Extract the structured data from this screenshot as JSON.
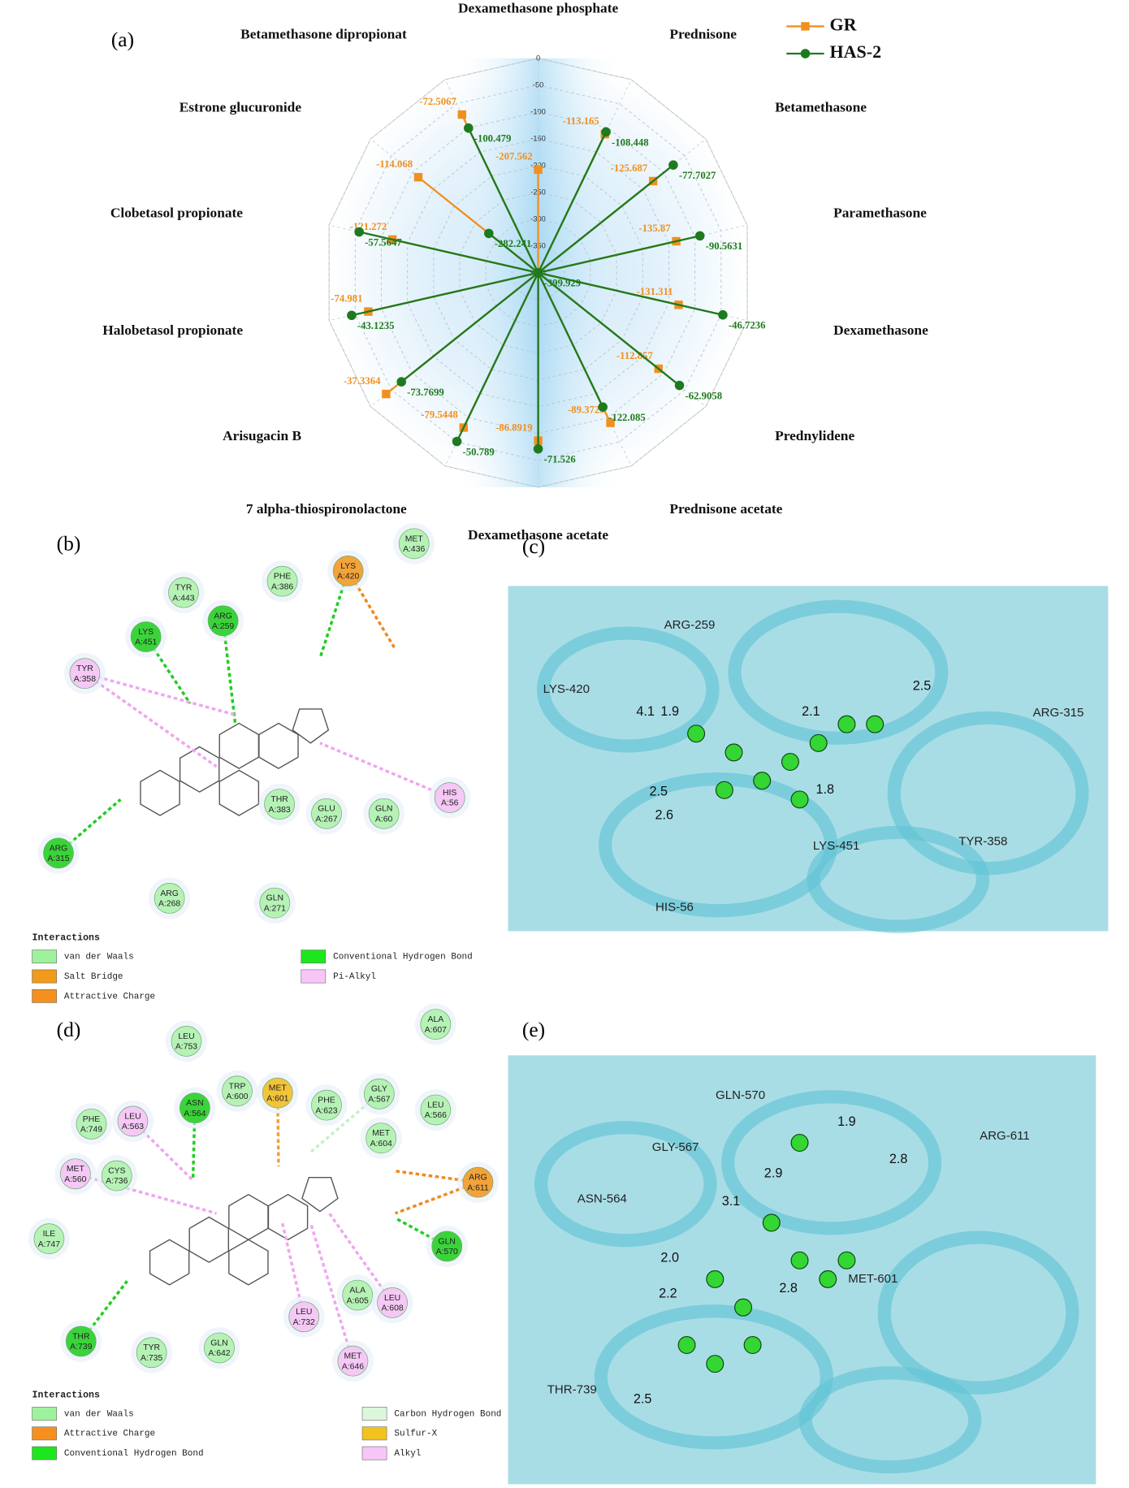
{
  "chart_data": {
    "type": "radar",
    "panel_label": "(a)",
    "categories": [
      "Dexamethasone phosphate",
      "Prednisone",
      "Betamethasone",
      "Paramethasone",
      "Dexamethasone",
      "Prednylidene",
      "Prednisone acetate",
      "Dexamethasone acetate",
      "7 alpha-thiospironolactone",
      "Arisugacin B",
      "Halobetasol propionate",
      "Clobetasol propionate",
      "Estrone glucuronide",
      "Betamethasone dipropionat"
    ],
    "series": [
      {
        "name": "GR",
        "color": "#f0901e",
        "marker": "square",
        "values": [
          -207.562,
          -113.165,
          -125.687,
          -135.87,
          -131.311,
          -112.857,
          -89.3729,
          -86.8919,
          -79.5448,
          -37.3364,
          -74.981,
          -121.272,
          -114.068,
          -72.5067
        ]
      },
      {
        "name": "HAS-2",
        "color": "#1e7a1e",
        "marker": "circle",
        "values": [
          -399.929,
          -108.448,
          -77.7027,
          -90.5631,
          -46.7236,
          -62.9058,
          -122.085,
          -71.526,
          -50.789,
          -73.7699,
          -43.1235,
          -57.5647,
          -282.241,
          -100.479
        ]
      }
    ],
    "ylim": [
      -400,
      0
    ],
    "yticks": [
      0,
      -50,
      -100,
      -150,
      -200,
      -250,
      -300,
      -350,
      -400
    ],
    "grid": true,
    "legend": "upper right"
  },
  "panel_b": {
    "label": "(b)",
    "residues": [
      {
        "name": "MET",
        "id": "A:436",
        "color": "#b6f2b6"
      },
      {
        "name": "TYR",
        "id": "A:443",
        "color": "#b6f2b6"
      },
      {
        "name": "PHE",
        "id": "A:386",
        "color": "#b6f2b6"
      },
      {
        "name": "LYS",
        "id": "A:420",
        "color": "#f2a33a"
      },
      {
        "name": "ARG",
        "id": "A:259",
        "color": "#3ad43a"
      },
      {
        "name": "LYS",
        "id": "A:451",
        "color": "#3ad43a"
      },
      {
        "name": "TYR",
        "id": "A:358",
        "color": "#f5c8f5"
      },
      {
        "name": "HIS",
        "id": "A:56",
        "color": "#f5c8f5"
      },
      {
        "name": "THR",
        "id": "A:383",
        "color": "#b6f2b6"
      },
      {
        "name": "GLU",
        "id": "A:267",
        "color": "#b6f2b6"
      },
      {
        "name": "GLN",
        "id": "A:60",
        "color": "#b6f2b6"
      },
      {
        "name": "ARG",
        "id": "A:315",
        "color": "#3ad43a"
      },
      {
        "name": "ARG",
        "id": "A:268",
        "color": "#b6f2b6"
      },
      {
        "name": "GLN",
        "id": "A:271",
        "color": "#b6f2b6"
      }
    ],
    "legend_title": "Interactions",
    "legend": [
      {
        "label": "van der Waals",
        "color": "#9ef29e"
      },
      {
        "label": "Salt Bridge",
        "color": "#f29b1b"
      },
      {
        "label": "Attractive Charge",
        "color": "#f5901e"
      },
      {
        "label": "Conventional Hydrogen Bond",
        "color": "#1ee61e"
      },
      {
        "label": "Pi-Alkyl",
        "color": "#f7c6f7"
      }
    ]
  },
  "panel_c": {
    "label": "(c)",
    "residues": [
      "ARG-259",
      "LYS-420",
      "ARG-315",
      "LYS-451",
      "TYR-358",
      "HIS-56"
    ],
    "distances": [
      "2.1",
      "2.5",
      "4.1",
      "1.9",
      "2.5",
      "2.6",
      "1.8"
    ]
  },
  "panel_d": {
    "label": "(d)",
    "residues": [
      {
        "name": "LEU",
        "id": "A:753",
        "color": "#b6f2b6"
      },
      {
        "name": "ALA",
        "id": "A:607",
        "color": "#b6f2b6"
      },
      {
        "name": "MET",
        "id": "A:601",
        "color": "#f2c43a"
      },
      {
        "name": "TRP",
        "id": "A:600",
        "color": "#b6f2b6"
      },
      {
        "name": "GLY",
        "id": "A:567",
        "color": "#b6f2b6"
      },
      {
        "name": "PHE",
        "id": "A:623",
        "color": "#b6f2b6"
      },
      {
        "name": "ASN",
        "id": "A:564",
        "color": "#3ad43a"
      },
      {
        "name": "LEU",
        "id": "A:566",
        "color": "#b6f2b6"
      },
      {
        "name": "PHE",
        "id": "A:749",
        "color": "#b6f2b6"
      },
      {
        "name": "LEU",
        "id": "A:563",
        "color": "#f5c8f5"
      },
      {
        "name": "MET",
        "id": "A:604",
        "color": "#b6f2b6"
      },
      {
        "name": "MET",
        "id": "A:560",
        "color": "#f5c8f5"
      },
      {
        "name": "CYS",
        "id": "A:736",
        "color": "#b6f2b6"
      },
      {
        "name": "ARG",
        "id": "A:611",
        "color": "#f2a33a"
      },
      {
        "name": "ILE",
        "id": "A:747",
        "color": "#b6f2b6"
      },
      {
        "name": "GLN",
        "id": "A:570",
        "color": "#3ad43a"
      },
      {
        "name": "ALA",
        "id": "A:605",
        "color": "#b6f2b6"
      },
      {
        "name": "LEU",
        "id": "A:608",
        "color": "#f5c8f5"
      },
      {
        "name": "LEU",
        "id": "A:732",
        "color": "#f5c8f5"
      },
      {
        "name": "THR",
        "id": "A:739",
        "color": "#3ad43a"
      },
      {
        "name": "TYR",
        "id": "A:735",
        "color": "#b6f2b6"
      },
      {
        "name": "GLN",
        "id": "A:642",
        "color": "#b6f2b6"
      },
      {
        "name": "MET",
        "id": "A:646",
        "color": "#f5c8f5"
      }
    ],
    "legend_title": "Interactions",
    "legend": [
      {
        "label": "van der Waals",
        "color": "#9ef29e"
      },
      {
        "label": "Attractive Charge",
        "color": "#f5901e"
      },
      {
        "label": "Conventional Hydrogen Bond",
        "color": "#1ee61e"
      },
      {
        "label": "Carbon Hydrogen Bond",
        "color": "#dcf7dc"
      },
      {
        "label": "Sulfur-X",
        "color": "#f2c21e"
      },
      {
        "label": "Alkyl",
        "color": "#f7c6f7"
      }
    ]
  },
  "panel_e": {
    "label": "(e)",
    "residues": [
      "GLN-570",
      "ARG-611",
      "GLY-567",
      "ASN-564",
      "MET-601",
      "THR-739"
    ],
    "distances": [
      "1.9",
      "2.8",
      "2.9",
      "3.1",
      "2.0",
      "2.2",
      "2.8",
      "2.5"
    ]
  }
}
